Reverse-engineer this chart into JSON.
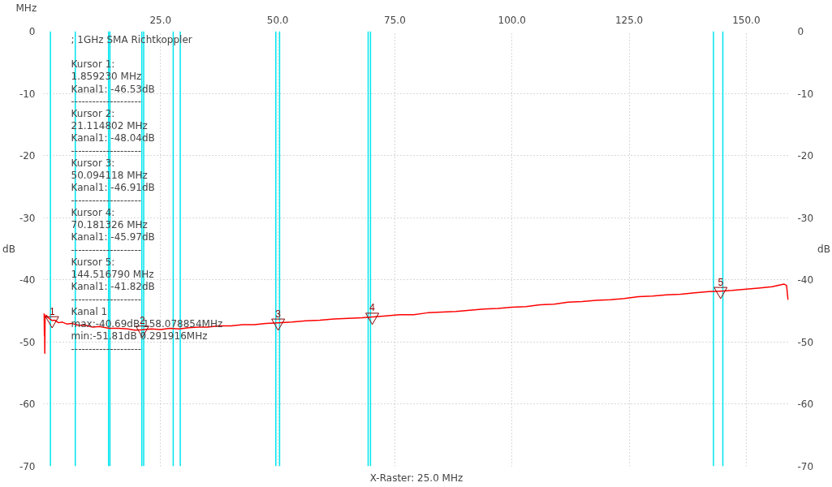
{
  "chart_data": {
    "type": "line",
    "xlabel": "MHz",
    "ylabel": "dB",
    "y2label": "dB",
    "annotations": [
      "; 1GHz SMA Richtkoppler",
      "Kursor 1:",
      "1.859230 MHz",
      "Kanal1: -46.53dB",
      "--------------------",
      "Kursor 2:",
      "21.114802 MHz",
      "Kanal1: -48.04dB",
      "--------------------",
      "Kursor 3:",
      "50.094118 MHz",
      "Kanal1: -46.91dB",
      "--------------------",
      "Kursor 4:",
      "70.181326 MHz",
      "Kanal1: -45.97dB",
      "--------------------",
      "Kursor 5:",
      "144.516790 MHz",
      "Kanal1: -41.82dB",
      "--------------------",
      "Kanal 1",
      "max:-40.69dB 158.078854MHz",
      "min:-51.81dB 0.291916MHz",
      "--------------------",
      "X-Raster: 25.0 MHz",
      {
        "text": "1",
        "x": 1.85923,
        "y": -46.53
      },
      {
        "text": "2",
        "x": 21.114802,
        "y": -48.04
      },
      {
        "text": "3",
        "x": 50.094118,
        "y": -46.91
      },
      {
        "text": "4",
        "x": 70.181326,
        "y": -45.97
      },
      {
        "text": "5",
        "x": 144.51679,
        "y": -41.82
      }
    ],
    "series": [
      {
        "name": null,
        "color": "#ff0000",
        "x": [
          0.1,
          0.2,
          0.25,
          0.291916,
          0.35,
          0.6,
          1.0,
          1.4,
          1.859,
          2.5,
          3.2,
          4.0,
          5.0,
          6.0,
          7.5,
          9.0,
          10.5,
          12.0,
          14.0,
          16.0,
          18.0,
          19.5,
          21.1,
          23.0,
          25.0,
          27.0,
          29.0,
          31.0,
          33.0,
          35.0,
          37.5,
          40.0,
          42.5,
          45.0,
          47.5,
          50.1,
          53.0,
          56.0,
          59.0,
          62.0,
          65.0,
          68.0,
          70.2,
          73.0,
          76.0,
          79.0,
          82.0,
          85.0,
          88.0,
          91.0,
          94.0,
          97.0,
          100.0,
          103.0,
          106.0,
          109.0,
          112.0,
          115.0,
          118.0,
          121.0,
          124.0,
          127.0,
          130.0,
          133.0,
          136.0,
          139.0,
          142.0,
          144.5,
          147.0,
          150.0,
          153.0,
          155.5,
          158.078854,
          158.6,
          158.9
        ],
        "values": [
          -45.4,
          -49.0,
          -45.6,
          -51.81,
          -46.2,
          -45.7,
          -46.1,
          -46.3,
          -46.53,
          -46.5,
          -46.9,
          -46.8,
          -47.1,
          -47.0,
          -47.3,
          -47.3,
          -47.6,
          -47.5,
          -47.8,
          -47.8,
          -47.9,
          -48.1,
          -48.04,
          -47.9,
          -48.0,
          -47.8,
          -47.9,
          -47.7,
          -47.6,
          -47.6,
          -47.4,
          -47.4,
          -47.2,
          -47.2,
          -47.0,
          -46.91,
          -46.8,
          -46.6,
          -46.5,
          -46.3,
          -46.2,
          -46.1,
          -45.97,
          -45.8,
          -45.6,
          -45.6,
          -45.3,
          -45.2,
          -45.1,
          -44.9,
          -44.7,
          -44.6,
          -44.4,
          -44.3,
          -44.0,
          -43.9,
          -43.6,
          -43.5,
          -43.3,
          -43.2,
          -43.0,
          -42.7,
          -42.6,
          -42.4,
          -42.3,
          -42.1,
          -41.9,
          -41.82,
          -41.7,
          -41.5,
          -41.3,
          -41.1,
          -40.69,
          -40.9,
          -43.2
        ]
      }
    ],
    "xlim": [
      0,
      159.2
    ],
    "xticks": [
      {
        "value": 25,
        "label": "25.0"
      },
      {
        "value": 50,
        "label": "50.0"
      },
      {
        "value": 75,
        "label": "75.0"
      },
      {
        "value": 100,
        "label": "100.0"
      },
      {
        "value": 125,
        "label": "125.0"
      },
      {
        "value": 150,
        "label": "150.0"
      }
    ],
    "ylim": [
      -70,
      0
    ],
    "yticks": [
      0,
      -10,
      -20,
      -30,
      -40,
      -50,
      -60,
      -70
    ],
    "y2lim": [
      -70,
      0
    ],
    "y2ticks": [
      0,
      -10,
      -20,
      -30,
      -40,
      -50,
      -60,
      -70
    ],
    "grid": true,
    "marker": "none",
    "line_style": "solid",
    "ref_lines": [
      {
        "axis": "x",
        "value": 1.5,
        "color": "#00e5ee"
      },
      {
        "axis": "x",
        "value": 6.8,
        "color": "#00e5ee"
      },
      {
        "axis": "x",
        "value": 13.9,
        "color": "#00e5ee"
      },
      {
        "axis": "x",
        "value": 14.2,
        "color": "#00e5ee"
      },
      {
        "axis": "x",
        "value": 21.0,
        "color": "#00e5ee"
      },
      {
        "axis": "x",
        "value": 21.4,
        "color": "#00e5ee"
      },
      {
        "axis": "x",
        "value": 27.7,
        "color": "#00e5ee"
      },
      {
        "axis": "x",
        "value": 29.2,
        "color": "#00e5ee"
      },
      {
        "axis": "x",
        "value": 49.6,
        "color": "#00e5ee"
      },
      {
        "axis": "x",
        "value": 50.4,
        "color": "#00e5ee"
      },
      {
        "axis": "x",
        "value": 69.3,
        "color": "#00e5ee"
      },
      {
        "axis": "x",
        "value": 69.8,
        "color": "#00e5ee"
      },
      {
        "axis": "x",
        "value": 143.0,
        "color": "#00e5ee"
      },
      {
        "axis": "x",
        "value": 145.0,
        "color": "#00e5ee"
      }
    ]
  }
}
